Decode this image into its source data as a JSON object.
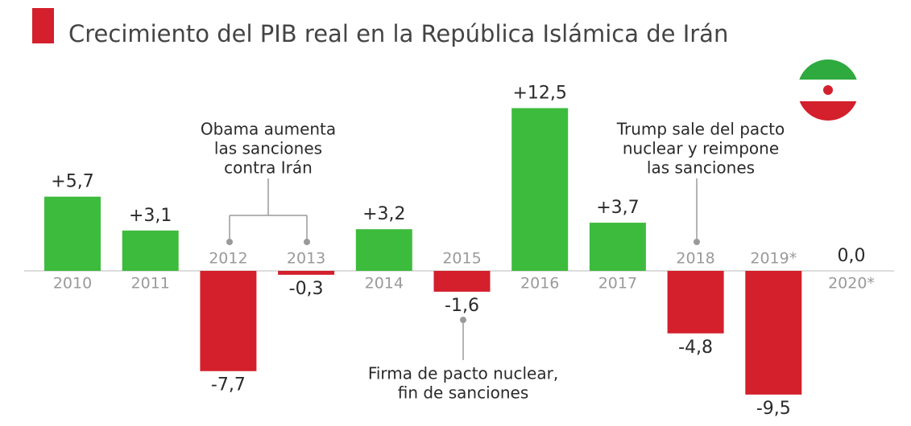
{
  "chart_data": {
    "type": "bar",
    "title": "Crecimiento del PIB real en la República Islámica de Irán",
    "categories": [
      "2010",
      "2011",
      "2012",
      "2013",
      "2014",
      "2015",
      "2016",
      "2017",
      "2018",
      "2019*",
      "2020*"
    ],
    "values": [
      5.7,
      3.1,
      -7.7,
      -0.3,
      3.2,
      -1.6,
      12.5,
      3.7,
      -4.8,
      -9.5,
      0.0
    ],
    "value_labels": [
      "+5,7",
      "+3,1",
      "-7,7",
      "-0,3",
      "+3,2",
      "-1,6",
      "+12,5",
      "+3,7",
      "-4,8",
      "-9,5",
      "0,0"
    ],
    "positive_color": "#3dbb3d",
    "negative_color": "#d3202c",
    "annotations": [
      [
        "Obama aumenta",
        "las sanciones",
        "contra Irán"
      ],
      [
        "Trump sale del pacto",
        "nuclear y reimpone",
        "las sanciones"
      ],
      [
        "Firma de pacto nuclear,",
        "fin de sanciones"
      ]
    ]
  }
}
